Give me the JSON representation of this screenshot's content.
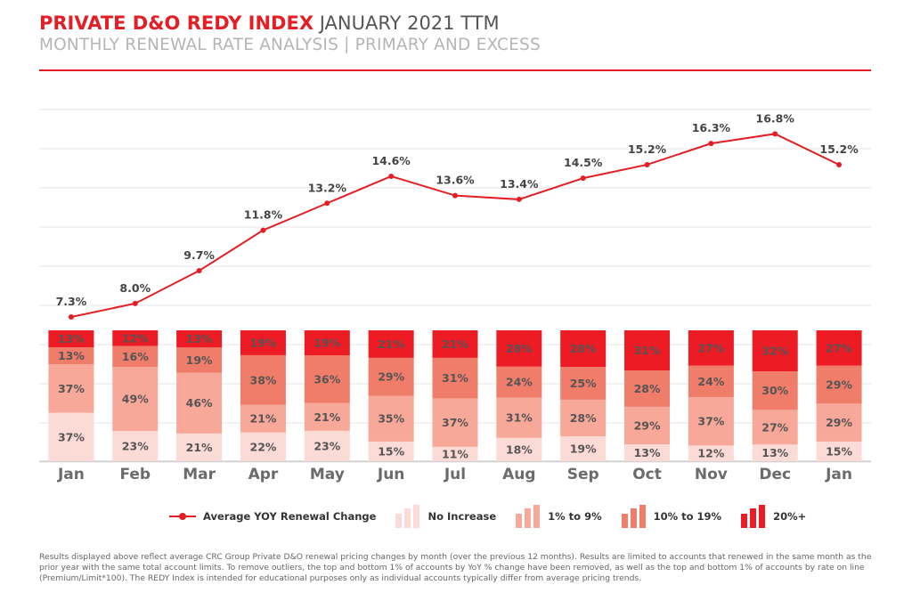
{
  "header": {
    "title_strong": "PRIVATE D&O REDY INDEX",
    "title_rest": "JANUARY 2021 TTM",
    "subtitle": "MONTHLY RENEWAL RATE ANALYSIS | PRIMARY AND EXCESS"
  },
  "chart_data": {
    "type": "bar",
    "stacked": true,
    "categories": [
      "Jan",
      "Feb",
      "Mar",
      "Apr",
      "May",
      "Jun",
      "Jul",
      "Aug",
      "Sep",
      "Oct",
      "Nov",
      "Dec",
      "Jan"
    ],
    "series": [
      {
        "name": "No Increase",
        "values": [
          37,
          23,
          21,
          22,
          23,
          15,
          11,
          18,
          19,
          13,
          12,
          13,
          15
        ],
        "labels": [
          "37%",
          "23%",
          "21%",
          "22%",
          "23%",
          "15%",
          "11%",
          "18%",
          "19%",
          "13%",
          "12%",
          "13%",
          "15%"
        ]
      },
      {
        "name": "1% to 9%",
        "values": [
          37,
          49,
          46,
          21,
          21,
          35,
          37,
          31,
          28,
          29,
          37,
          27,
          29
        ],
        "labels": [
          "37%",
          "49%",
          "46%",
          "21%",
          "21%",
          "35%",
          "37%",
          "31%",
          "28%",
          "29%",
          "37%",
          "27%",
          "29%"
        ]
      },
      {
        "name": "10% to 19%",
        "values": [
          13,
          16,
          19,
          38,
          36,
          29,
          31,
          24,
          25,
          28,
          24,
          30,
          29
        ],
        "labels": [
          "13%",
          "16%",
          "19%",
          "38%",
          "36%",
          "29%",
          "31%",
          "24%",
          "25%",
          "28%",
          "24%",
          "30%",
          "29%"
        ]
      },
      {
        "name": "20%+",
        "values": [
          13,
          12,
          13,
          19,
          19,
          21,
          21,
          28,
          28,
          31,
          27,
          32,
          27
        ],
        "labels": [
          "13%",
          "12%",
          "13%",
          "19%",
          "19%",
          "21%",
          "21%",
          "28%",
          "28%",
          "31%",
          "27%",
          "32%",
          "27%"
        ]
      }
    ],
    "line": {
      "name": "Average YOY Renewal Change",
      "values": [
        7.3,
        8.0,
        9.7,
        11.8,
        13.2,
        14.6,
        13.6,
        13.4,
        14.5,
        15.2,
        16.3,
        16.8,
        15.2
      ],
      "labels": [
        "7.3%",
        "8.0%",
        "9.7%",
        "11.8%",
        "13.2%",
        "14.6%",
        "13.6%",
        "13.4%",
        "14.5%",
        "15.2%",
        "16.3%",
        "16.8%",
        "15.2%"
      ]
    },
    "colors": {
      "No Increase": "#fcdad6",
      "1% to 9%": "#f8a898",
      "10% to 19%": "#f07d6a",
      "20%+": "#ed1c24",
      "line": "#e31e24"
    },
    "grid": true,
    "legend_position": "bottom"
  },
  "legend": [
    {
      "label": "Average YOY Renewal Change"
    },
    {
      "label": "No Increase"
    },
    {
      "label": "1% to 9%"
    },
    {
      "label": "10% to 19%"
    },
    {
      "label": "20%+"
    }
  ],
  "footnote": "Results displayed above reflect average CRC Group Private D&O renewal pricing changes by month (over the previous 12 months). Results are limited to accounts that renewed in the same month as the prior year with the same total account limits. To remove outliers, the top and bottom 1% of accounts by YoY % change have been removed, as well as the top and bottom 1% of accounts by rate on line (Premium/Limit*100). The REDY Index is intended for educational purposes only as individual accounts typically differ from average pricing trends."
}
